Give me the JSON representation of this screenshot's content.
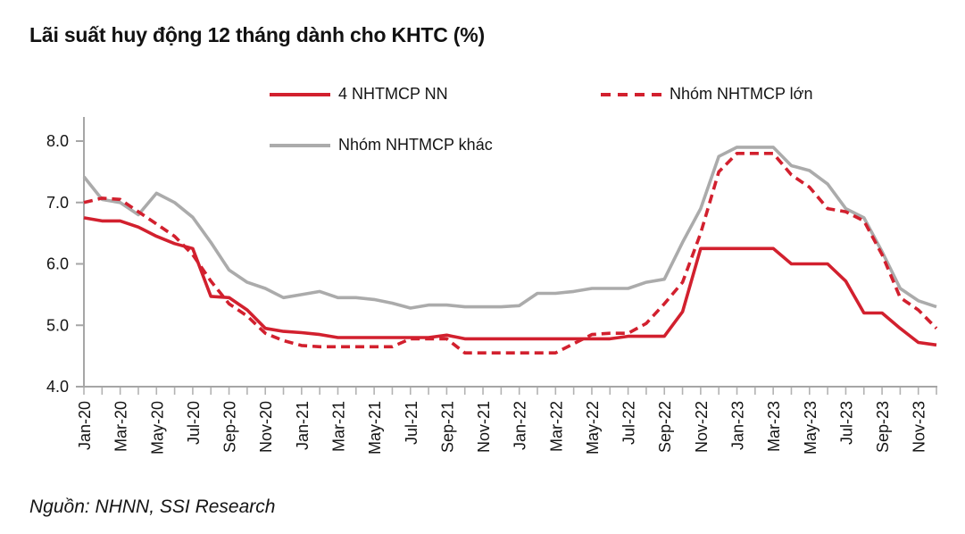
{
  "title": "Lãi suất huy động 12 tháng dành cho KHTC (%)",
  "source": "Nguồn: NHNN, SSI Research",
  "colors": {
    "red": "#d2202e",
    "gray": "#ababab",
    "axis": "#a6a6a6",
    "text": "#141414"
  },
  "legend": [
    {
      "label": "4 NHTMCP NN",
      "style": "solid",
      "color": "#d2202e"
    },
    {
      "label": "Nhóm NHTMCP lớn",
      "style": "dashed",
      "color": "#d2202e"
    },
    {
      "label": "Nhóm NHTMCP khác",
      "style": "solid",
      "color": "#ababab"
    }
  ],
  "chart_data": {
    "type": "line",
    "title": "Lãi suất huy động 12 tháng dành cho KHTC (%)",
    "xlabel": "",
    "ylabel": "",
    "ylim": [
      4.0,
      8.0
    ],
    "y_ticks": [
      8.0,
      7.0,
      6.0,
      5.0,
      4.0
    ],
    "grid": false,
    "legend_position": "top",
    "x": [
      "Jan-20",
      "Feb-20",
      "Mar-20",
      "Apr-20",
      "May-20",
      "Jun-20",
      "Jul-20",
      "Aug-20",
      "Sep-20",
      "Oct-20",
      "Nov-20",
      "Dec-20",
      "Jan-21",
      "Feb-21",
      "Mar-21",
      "Apr-21",
      "May-21",
      "Jun-21",
      "Jul-21",
      "Aug-21",
      "Sep-21",
      "Oct-21",
      "Nov-21",
      "Dec-21",
      "Jan-22",
      "Feb-22",
      "Mar-22",
      "Apr-22",
      "May-22",
      "Jun-22",
      "Jul-22",
      "Aug-22",
      "Sep-22",
      "Oct-22",
      "Nov-22",
      "Dec-22",
      "Jan-23",
      "Feb-23",
      "Mar-23",
      "Apr-23",
      "May-23",
      "Jun-23",
      "Jul-23",
      "Aug-23",
      "Sep-23",
      "Oct-23",
      "Nov-23",
      "Dec-23"
    ],
    "x_label_every": 2,
    "series": [
      {
        "name": "4 NHTMCP NN",
        "color": "#d2202e",
        "dash": false,
        "values": [
          6.75,
          6.7,
          6.7,
          6.6,
          6.45,
          6.33,
          6.25,
          5.47,
          5.45,
          5.25,
          4.95,
          4.9,
          4.88,
          4.85,
          4.8,
          4.8,
          4.8,
          4.8,
          4.8,
          4.8,
          4.84,
          4.78,
          4.78,
          4.78,
          4.78,
          4.78,
          4.78,
          4.78,
          4.78,
          4.78,
          4.82,
          4.82,
          4.82,
          5.22,
          6.25,
          6.25,
          6.25,
          6.25,
          6.25,
          6.0,
          6.0,
          6.0,
          5.72,
          5.2,
          5.2,
          4.95,
          4.72,
          4.68
        ]
      },
      {
        "name": "Nhóm NHTMCP lớn",
        "color": "#d2202e",
        "dash": true,
        "values": [
          7.0,
          7.07,
          7.05,
          6.85,
          6.65,
          6.45,
          6.15,
          5.72,
          5.35,
          5.15,
          4.87,
          4.75,
          4.67,
          4.65,
          4.65,
          4.65,
          4.65,
          4.65,
          4.78,
          4.78,
          4.78,
          4.55,
          4.55,
          4.55,
          4.55,
          4.55,
          4.55,
          4.7,
          4.85,
          4.87,
          4.87,
          5.03,
          5.35,
          5.7,
          6.5,
          7.5,
          7.8,
          7.8,
          7.8,
          7.45,
          7.25,
          6.9,
          6.85,
          6.7,
          6.15,
          5.45,
          5.25,
          4.95
        ]
      },
      {
        "name": "Nhóm NHTMCP khác",
        "color": "#ababab",
        "dash": false,
        "values": [
          7.42,
          7.05,
          7.0,
          6.8,
          7.15,
          7.0,
          6.76,
          6.35,
          5.9,
          5.7,
          5.6,
          5.45,
          5.5,
          5.55,
          5.45,
          5.45,
          5.42,
          5.36,
          5.28,
          5.33,
          5.33,
          5.3,
          5.3,
          5.3,
          5.32,
          5.52,
          5.52,
          5.55,
          5.6,
          5.6,
          5.6,
          5.7,
          5.75,
          6.35,
          6.9,
          7.75,
          7.9,
          7.9,
          7.9,
          7.6,
          7.52,
          7.3,
          6.9,
          6.75,
          6.2,
          5.6,
          5.4,
          5.3
        ]
      }
    ]
  }
}
